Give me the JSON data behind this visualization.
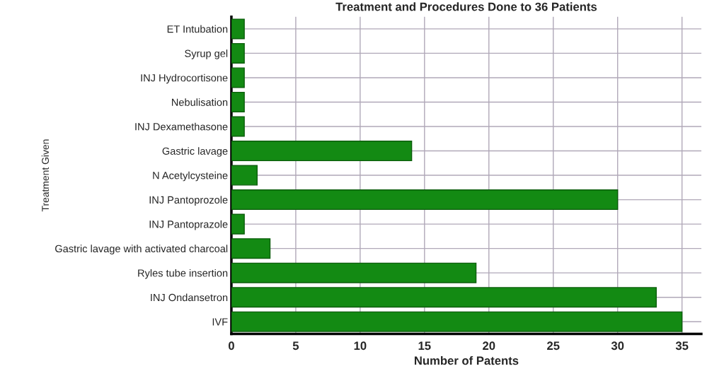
{
  "chart_data": {
    "type": "bar",
    "orientation": "horizontal",
    "title": "Treatment and Procedures Done to 36 Patients",
    "xlabel": "Number of Patents",
    "ylabel": "Treatment Given",
    "categories": [
      "ET Intubation",
      "Syrup gel",
      "INJ Hydrocortisone",
      "Nebulisation",
      "INJ Dexamethasone",
      "Gastric lavage",
      "N Acetylcysteine",
      "INJ Pantoprozole",
      "INJ Pantoprazole",
      "Gastric lavage with activated charcoal",
      "Ryles tube insertion",
      "INJ Ondansetron",
      "IVF"
    ],
    "values": [
      1,
      1,
      1,
      1,
      1,
      14,
      2,
      30,
      1,
      3,
      19,
      33,
      35
    ],
    "color": "#138a13",
    "xlim": [
      0,
      36.5
    ],
    "xticks": [
      0,
      5,
      10,
      15,
      20,
      25,
      30,
      35
    ],
    "grid": true
  }
}
